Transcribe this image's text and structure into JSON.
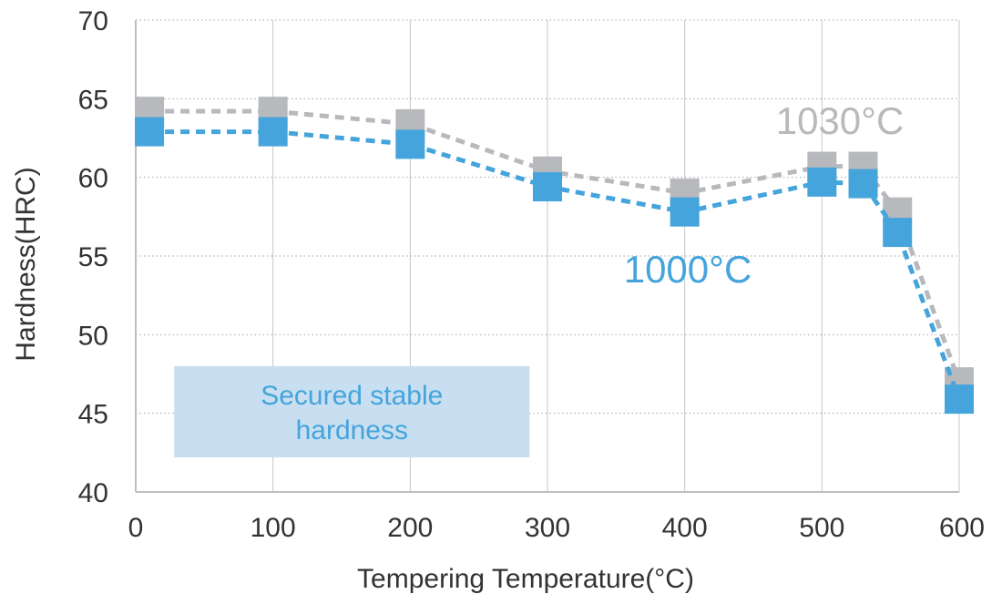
{
  "chart_data": {
    "type": "line",
    "title": "",
    "xlabel": "Tempering Temperature(°C)",
    "ylabel": "Hardness(HRC)",
    "xlim": [
      0,
      600
    ],
    "ylim": [
      40,
      70
    ],
    "xticks": [
      0,
      100,
      200,
      300,
      400,
      500,
      600
    ],
    "yticks": [
      40,
      45,
      50,
      55,
      60,
      65,
      70
    ],
    "grid": "horizontal dotted",
    "series": [
      {
        "name": "1030°C",
        "color": "#b7b9bc",
        "x": [
          10,
          100,
          200,
          300,
          400,
          500,
          530,
          555,
          600
        ],
        "y": [
          64.2,
          64.2,
          63.4,
          60.4,
          59.0,
          60.7,
          60.7,
          57.8,
          47.0
        ]
      },
      {
        "name": "1000°C",
        "color": "#45a4dc",
        "x": [
          10,
          100,
          200,
          300,
          400,
          500,
          530,
          555,
          600
        ],
        "y": [
          62.9,
          62.9,
          62.1,
          59.4,
          57.8,
          59.7,
          59.6,
          56.5,
          45.9
        ]
      }
    ],
    "annotation": {
      "text_line1": "Secured stable",
      "text_line2": "hardness",
      "x_range": [
        28,
        287
      ],
      "y_range": [
        42.2,
        48.0
      ],
      "fill": "#c8dff1",
      "text_color": "#45a4dc"
    }
  }
}
